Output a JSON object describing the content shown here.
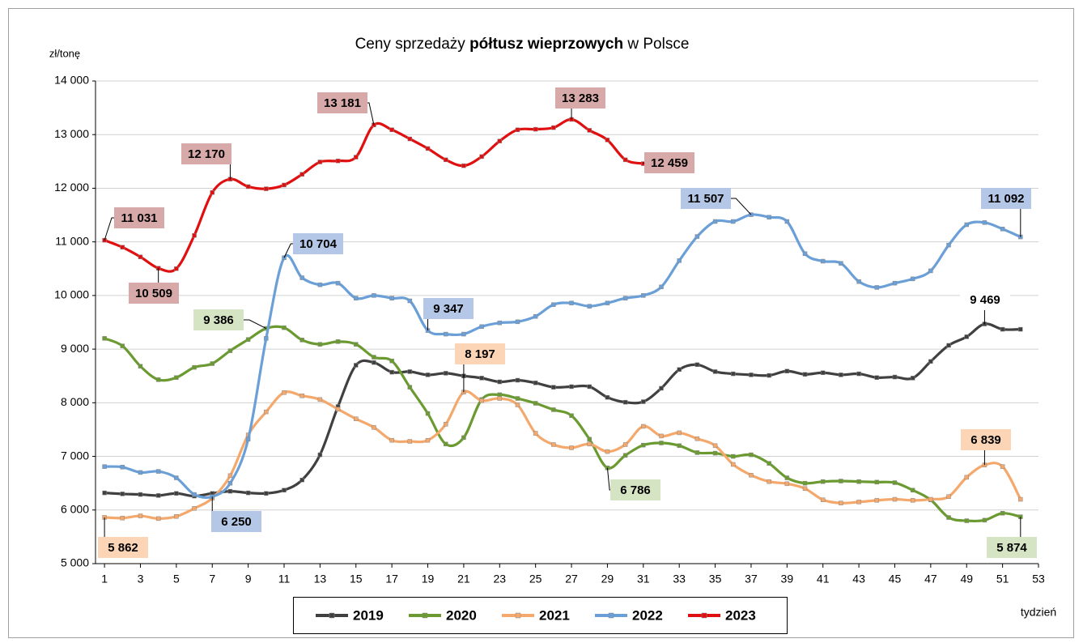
{
  "chart_data": {
    "type": "line",
    "title": {
      "before": "Ceny sprzedaży ",
      "bold": "półtusz wieprzowych",
      "after": " w Polsce"
    },
    "y_label": "zł/tonę",
    "x_label": "tydzień",
    "xlim": [
      0.5,
      53
    ],
    "xticks": [
      1,
      3,
      5,
      7,
      9,
      11,
      13,
      15,
      17,
      19,
      21,
      23,
      25,
      27,
      29,
      31,
      33,
      35,
      37,
      39,
      41,
      43,
      45,
      47,
      49,
      51,
      53
    ],
    "ylim": [
      5000,
      14000
    ],
    "yticks": [
      {
        "value": 5000,
        "label": "5 000"
      },
      {
        "value": 6000,
        "label": "6 000"
      },
      {
        "value": 7000,
        "label": "7 000"
      },
      {
        "value": 8000,
        "label": "8 000"
      },
      {
        "value": 9000,
        "label": "9 000"
      },
      {
        "value": 10000,
        "label": "10 000"
      },
      {
        "value": 11000,
        "label": "11 000"
      },
      {
        "value": 12000,
        "label": "12 000"
      },
      {
        "value": 13000,
        "label": "13 000"
      },
      {
        "value": 14000,
        "label": "14 000"
      }
    ],
    "grid": true,
    "series": [
      {
        "name": "2019",
        "color": "#404040",
        "label_color": "#ffffff",
        "values": [
          6320,
          6300,
          6290,
          6270,
          6310,
          6260,
          6310,
          6350,
          6320,
          6310,
          6370,
          6560,
          7030,
          7930,
          8700,
          8750,
          8570,
          8580,
          8520,
          8550,
          8500,
          8460,
          8390,
          8420,
          8370,
          8290,
          8300,
          8300,
          8100,
          8010,
          8020,
          8270,
          8620,
          8710,
          8580,
          8540,
          8520,
          8510,
          8590,
          8530,
          8560,
          8520,
          8540,
          8470,
          8480,
          8460,
          8770,
          9070,
          9230,
          9469,
          9370,
          9370
        ],
        "value_labels": [
          null,
          null,
          null,
          null,
          null,
          null,
          null,
          null,
          null,
          null,
          null,
          null,
          null,
          null,
          null,
          null,
          null,
          null,
          null,
          null,
          null,
          null,
          null,
          null,
          null,
          null,
          null,
          null,
          null,
          null,
          null,
          null,
          null,
          null,
          null,
          null,
          null,
          null,
          null,
          null,
          null,
          null,
          null,
          null,
          null,
          null,
          null,
          null,
          null,
          "9 469",
          null,
          null
        ]
      },
      {
        "name": "2020",
        "color": "#6a9a30",
        "label_color": "#d5e4c3",
        "values": [
          9200,
          9060,
          8680,
          8430,
          8470,
          8660,
          8730,
          8970,
          9180,
          9386,
          9400,
          9170,
          9090,
          9140,
          9090,
          8850,
          8780,
          8290,
          7800,
          7230,
          7350,
          8060,
          8150,
          8080,
          7990,
          7870,
          7760,
          7320,
          6786,
          7020,
          7210,
          7250,
          7200,
          7070,
          7060,
          7000,
          7030,
          6870,
          6600,
          6500,
          6530,
          6540,
          6530,
          6520,
          6510,
          6370,
          6190,
          5860,
          5800,
          5810,
          5940,
          5874
        ],
        "value_labels": [
          null,
          null,
          null,
          null,
          null,
          null,
          null,
          null,
          null,
          "9 386",
          null,
          null,
          null,
          null,
          null,
          null,
          null,
          null,
          null,
          null,
          null,
          null,
          null,
          null,
          null,
          null,
          null,
          null,
          "6 786",
          null,
          null,
          null,
          null,
          null,
          null,
          null,
          null,
          null,
          null,
          null,
          null,
          null,
          null,
          null,
          null,
          null,
          null,
          null,
          null,
          null,
          null,
          "5 874"
        ]
      },
      {
        "name": "2021",
        "color": "#f4a86c",
        "label_color": "#fbd5b5",
        "values": [
          5862,
          5850,
          5890,
          5840,
          5880,
          6030,
          6220,
          6640,
          7400,
          7830,
          8190,
          8130,
          8060,
          7880,
          7700,
          7540,
          7300,
          7280,
          7300,
          7600,
          8197,
          8040,
          8080,
          7960,
          7430,
          7220,
          7160,
          7230,
          7090,
          7220,
          7560,
          7380,
          7440,
          7330,
          7200,
          6850,
          6650,
          6530,
          6490,
          6400,
          6190,
          6130,
          6150,
          6180,
          6200,
          6180,
          6200,
          6250,
          6610,
          6839,
          6810,
          6200
        ],
        "value_labels": [
          "5 862",
          null,
          null,
          null,
          null,
          null,
          null,
          null,
          null,
          null,
          null,
          null,
          null,
          null,
          null,
          null,
          null,
          null,
          null,
          null,
          "8 197",
          null,
          null,
          null,
          null,
          null,
          null,
          null,
          null,
          null,
          null,
          null,
          null,
          null,
          null,
          null,
          null,
          null,
          null,
          null,
          null,
          null,
          null,
          null,
          null,
          null,
          null,
          null,
          null,
          "6 839",
          null,
          null
        ]
      },
      {
        "name": "2022",
        "color": "#6a9fd8",
        "label_color": "#b4c7e7",
        "values": [
          6810,
          6800,
          6700,
          6720,
          6600,
          6290,
          6250,
          6500,
          7320,
          9200,
          10704,
          10330,
          10200,
          10230,
          9950,
          10000,
          9950,
          9900,
          9347,
          9280,
          9280,
          9420,
          9490,
          9510,
          9610,
          9830,
          9860,
          9800,
          9860,
          9950,
          10000,
          10160,
          10650,
          11100,
          11380,
          11380,
          11507,
          11460,
          11380,
          10780,
          10640,
          10600,
          10260,
          10150,
          10230,
          10310,
          10460,
          10940,
          11320,
          11360,
          11240,
          11092
        ],
        "value_labels": [
          null,
          null,
          null,
          null,
          null,
          null,
          "6 250",
          null,
          null,
          null,
          "10 704",
          null,
          null,
          null,
          null,
          null,
          null,
          null,
          "9 347",
          null,
          null,
          null,
          null,
          null,
          null,
          null,
          null,
          null,
          null,
          null,
          null,
          null,
          null,
          null,
          null,
          null,
          "11 507",
          null,
          null,
          null,
          null,
          null,
          null,
          null,
          null,
          null,
          null,
          null,
          null,
          null,
          null,
          "11 092"
        ]
      },
      {
        "name": "2023",
        "color": "#e01010",
        "label_color": "#d8a9a9",
        "values": [
          11031,
          10900,
          10720,
          10509,
          10500,
          11120,
          11920,
          12170,
          12030,
          11990,
          12060,
          12260,
          12490,
          12510,
          12580,
          13181,
          13090,
          12920,
          12740,
          12530,
          12420,
          12590,
          12880,
          13090,
          13100,
          13130,
          13283,
          13080,
          12900,
          12530,
          12459
        ],
        "value_labels": [
          "11 031",
          null,
          null,
          "10 509",
          null,
          null,
          null,
          "12 170",
          null,
          null,
          null,
          null,
          null,
          null,
          null,
          "13 181",
          null,
          null,
          null,
          null,
          null,
          null,
          null,
          null,
          null,
          null,
          "13 283",
          null,
          null,
          null,
          "12 459"
        ]
      }
    ]
  }
}
